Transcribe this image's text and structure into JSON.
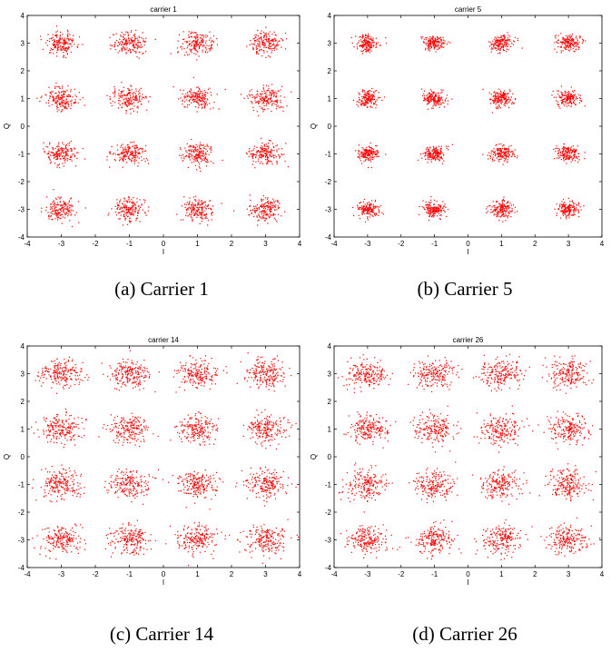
{
  "colors": {
    "points": "#ff0000",
    "axes": "#000000",
    "background": "#ffffff"
  },
  "chart_data": [
    {
      "type": "scatter",
      "title": "carrier 1",
      "xlabel": "I",
      "ylabel": "Q",
      "xlim": [
        -4,
        4
      ],
      "ylim": [
        -4,
        4
      ],
      "xticks": [
        -4,
        -3,
        -2,
        -1,
        0,
        1,
        2,
        3,
        4
      ],
      "yticks": [
        -4,
        -3,
        -2,
        -1,
        0,
        1,
        2,
        3,
        4
      ],
      "grid": false,
      "caption": "(a) Carrier 1",
      "cluster_centers_x": [
        -3,
        -1,
        1,
        3
      ],
      "cluster_centers_y": [
        3,
        1,
        -1,
        -3
      ],
      "spread": 0.24,
      "points_per_cluster": 180
    },
    {
      "type": "scatter",
      "title": "carrier 5",
      "xlabel": "I",
      "ylabel": "Q",
      "xlim": [
        -4,
        4
      ],
      "ylim": [
        -4,
        4
      ],
      "xticks": [
        -4,
        -3,
        -2,
        -1,
        0,
        1,
        2,
        3,
        4
      ],
      "yticks": [
        -4,
        -3,
        -2,
        -1,
        0,
        1,
        2,
        3,
        4
      ],
      "grid": false,
      "caption": "(b) Carrier 5",
      "cluster_centers_x": [
        -3,
        -1,
        1,
        3
      ],
      "cluster_centers_y": [
        3,
        1,
        -1,
        -3
      ],
      "spread": 0.17,
      "points_per_cluster": 170
    },
    {
      "type": "scatter",
      "title": "carrier 14",
      "xlabel": "I",
      "ylabel": "Q",
      "xlim": [
        -4,
        4
      ],
      "ylim": [
        -4,
        4
      ],
      "xticks": [
        -4,
        -3,
        -2,
        -1,
        0,
        1,
        2,
        3,
        4
      ],
      "yticks": [
        -4,
        -3,
        -2,
        -1,
        0,
        1,
        2,
        3,
        4
      ],
      "grid": false,
      "caption": "(c) Carrier 14",
      "cluster_centers_x": [
        -3,
        -1,
        1,
        3
      ],
      "cluster_centers_y": [
        3,
        1,
        -1,
        -3
      ],
      "spread": 0.3,
      "points_per_cluster": 200
    },
    {
      "type": "scatter",
      "title": "carrier 26",
      "xlabel": "I",
      "ylabel": "Q",
      "xlim": [
        -4,
        4
      ],
      "ylim": [
        -4,
        4
      ],
      "xticks": [
        -4,
        -3,
        -2,
        -1,
        0,
        1,
        2,
        3,
        4
      ],
      "yticks": [
        -4,
        -3,
        -2,
        -1,
        0,
        1,
        2,
        3,
        4
      ],
      "grid": false,
      "caption": "(d) Carrier 26",
      "cluster_centers_x": [
        -3,
        -1,
        1,
        3
      ],
      "cluster_centers_y": [
        3,
        1,
        -1,
        -3
      ],
      "spread": 0.3,
      "points_per_cluster": 200
    }
  ]
}
